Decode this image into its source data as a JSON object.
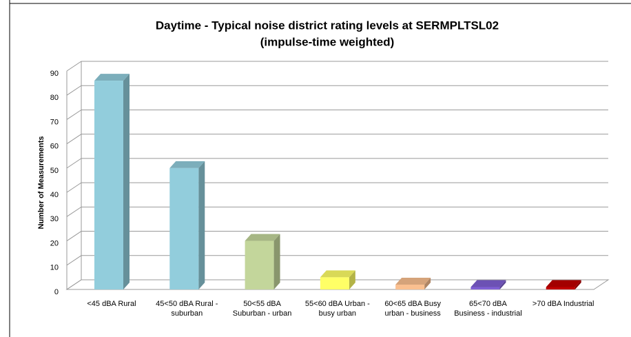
{
  "chart_data": {
    "type": "bar3d",
    "title": "Daytime - Typical noise district rating levels at SERMPLTSL02",
    "subtitle": "(impulse-time weighted)",
    "y_label": "Number of Measurements",
    "categories": [
      "<45 dBA Rural",
      "45<50 dBA Rural - suburban",
      "50<55 dBA Suburban - urban",
      "55<60 dBA Urban - busy urban",
      "60<65 dBA Busy urban - business",
      "65<70 dBA Business - industrial",
      ">70 dBA Industrial"
    ],
    "values": [
      86,
      50,
      20,
      5,
      2,
      1,
      1
    ],
    "colors": [
      "#92cddc",
      "#92cddc",
      "#c3d69b",
      "#ffff66",
      "#fac090",
      "#7f5fd4",
      "#c00000"
    ],
    "ylim": [
      0,
      90
    ],
    "yticks": [
      0,
      10,
      20,
      30,
      40,
      50,
      60,
      70,
      80,
      90
    ],
    "grid": true
  }
}
